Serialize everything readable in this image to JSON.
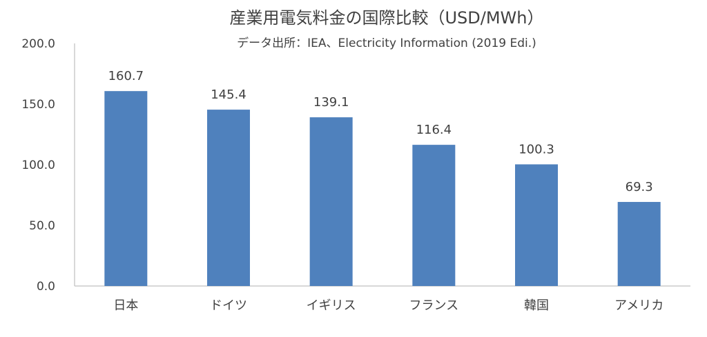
{
  "chart_data": {
    "type": "bar",
    "title": "産業用電気料金の国際比較（USD/MWh）",
    "subtitle": "データ出所：IEA、Electricity Information (2019 Edi.)",
    "categories": [
      "日本",
      "ドイツ",
      "イギリス",
      "フランス",
      "韓国",
      "アメリカ"
    ],
    "values": [
      160.7,
      145.4,
      139.1,
      116.4,
      100.3,
      69.3
    ],
    "data_labels": [
      "160.7",
      "145.4",
      "139.1",
      "116.4",
      "100.3",
      "69.3"
    ],
    "y_ticks": [
      "0.0",
      "50.0",
      "100.0",
      "150.0",
      "200.0"
    ],
    "ylim": [
      0,
      200
    ],
    "grid": false,
    "legend": "none",
    "bar_color": "#4f81bd",
    "axis_color": "#bfbfbf"
  }
}
